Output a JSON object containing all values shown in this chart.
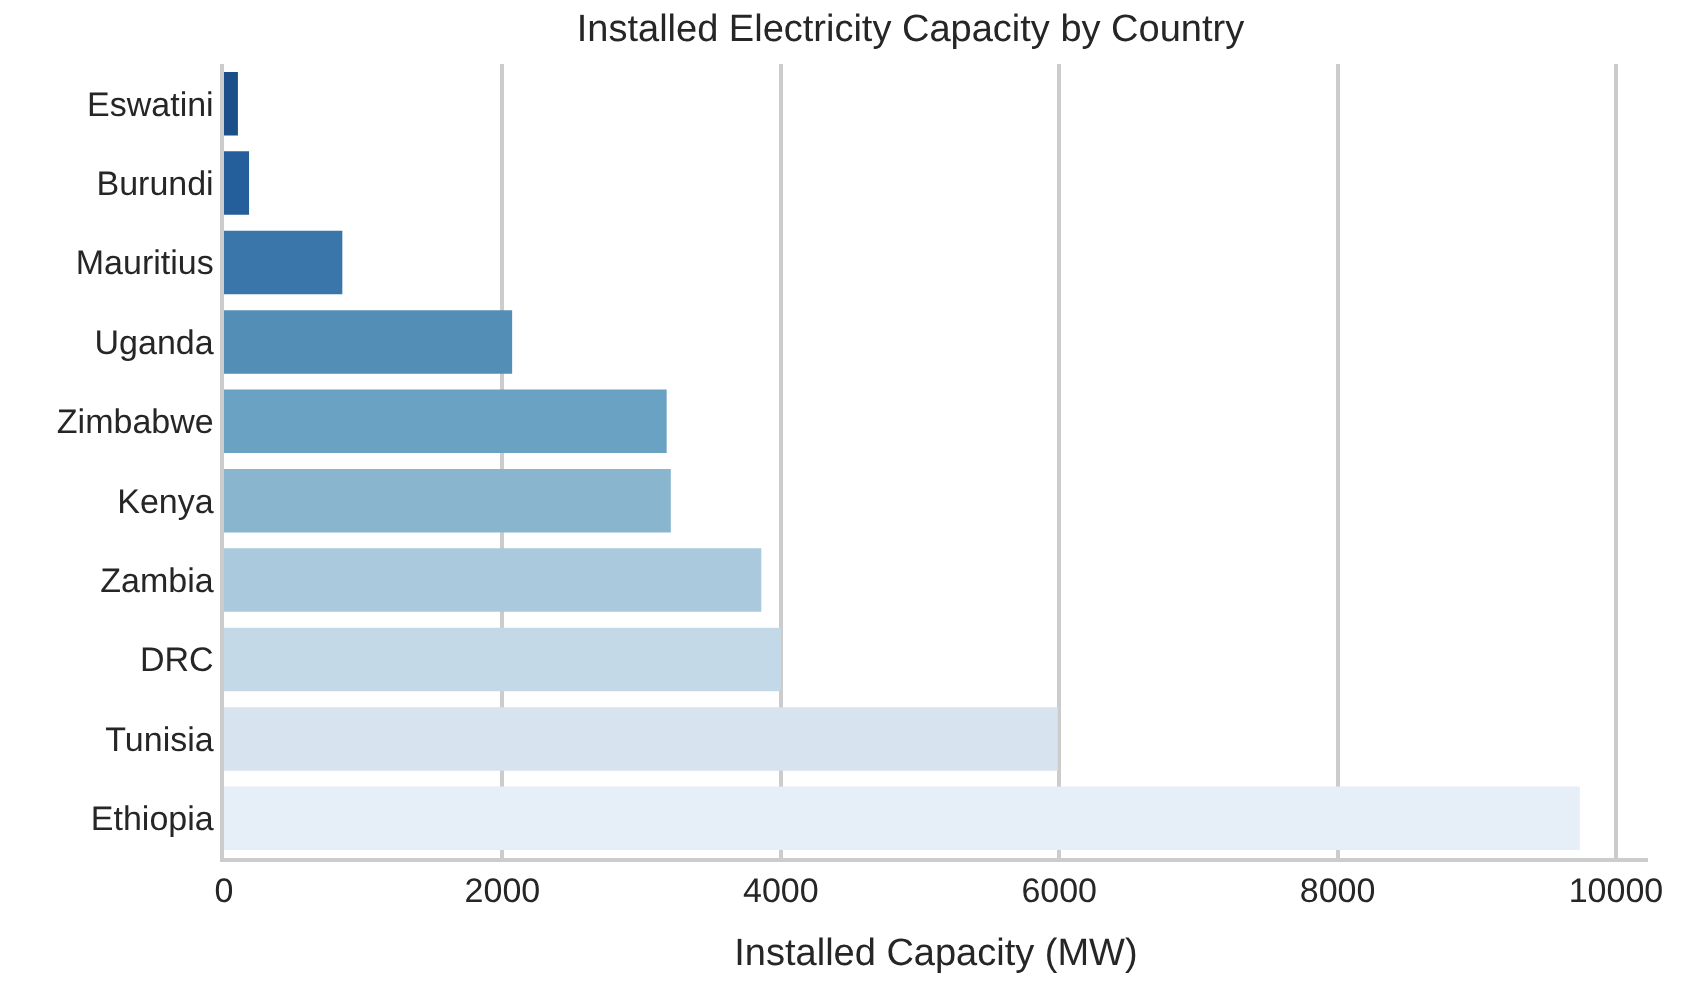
{
  "chart_data": {
    "type": "bar",
    "orientation": "horizontal",
    "title": "Installed Electricity Capacity by Country",
    "xlabel": "Installed Capacity (MW)",
    "categories": [
      "Eswatini",
      "Burundi",
      "Mauritius",
      "Uganda",
      "Zimbabwe",
      "Kenya",
      "Zambia",
      "DRC",
      "Tunisia",
      "Ethiopia"
    ],
    "values": [
      100,
      180,
      850,
      2070,
      3180,
      3210,
      3860,
      4000,
      5990,
      9740
    ],
    "colors": [
      "#1c4f8a",
      "#245e9b",
      "#3a76a9",
      "#528eb6",
      "#6aa2c4",
      "#8ab5cf",
      "#aac9dc",
      "#c4d9e8",
      "#d7e3ef",
      "#e6eef7"
    ],
    "xlim": [
      0,
      10230
    ],
    "xticks": [
      0,
      2000,
      4000,
      6000,
      8000,
      10000
    ],
    "grid": "x"
  }
}
